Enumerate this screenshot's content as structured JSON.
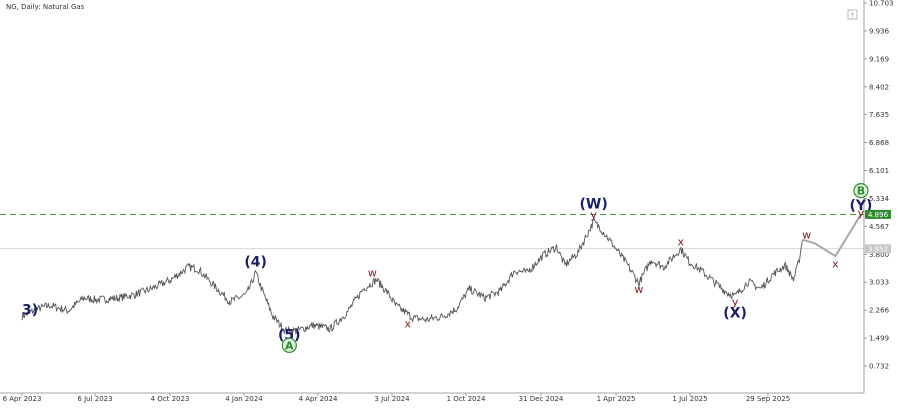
{
  "chart_data": {
    "type": "line",
    "symbol_label": "NG, Daily:  Natural Gas",
    "x_ticks": [
      "6 Apr 2023",
      "6 Jul 2023",
      "4 Oct 2023",
      "4 Jan 2024",
      "4 Apr 2024",
      "3 Jul 2024",
      "1 Oct 2024",
      "31 Dec 2024",
      "1 Apr 2025",
      "1 Jul 2025",
      "29 Sep 2025"
    ],
    "y_ticks": [
      "10.703",
      "9.936",
      "9.169",
      "8.402",
      "7.635",
      "6.868",
      "6.101",
      "5.334",
      "4.567",
      "3.800",
      "3.033",
      "2.266",
      "1.499",
      "0.732"
    ],
    "ylim": [
      0.4,
      10.703
    ],
    "price_path": [
      [
        "2023-04-06",
        2.1
      ],
      [
        "2023-04-25",
        2.3
      ],
      [
        "2023-05-10",
        2.4
      ],
      [
        "2023-06-01",
        2.25
      ],
      [
        "2023-06-20",
        2.6
      ],
      [
        "2023-07-06",
        2.55
      ],
      [
        "2023-08-01",
        2.6
      ],
      [
        "2023-08-22",
        2.7
      ],
      [
        "2023-09-10",
        2.85
      ],
      [
        "2023-10-04",
        3.1
      ],
      [
        "2023-10-25",
        3.45
      ],
      [
        "2023-11-06",
        3.4
      ],
      [
        "2023-11-25",
        2.95
      ],
      [
        "2023-12-15",
        2.5
      ],
      [
        "2024-01-04",
        2.7
      ],
      [
        "2024-01-10",
        3.0
      ],
      [
        "2024-01-15",
        3.3
      ],
      [
        "2024-01-25",
        2.7
      ],
      [
        "2024-02-05",
        2.1
      ],
      [
        "2024-02-20",
        1.7
      ],
      [
        "2024-03-05",
        1.7
      ],
      [
        "2024-03-25",
        1.85
      ],
      [
        "2024-04-15",
        1.75
      ],
      [
        "2024-05-05",
        2.2
      ],
      [
        "2024-05-25",
        2.85
      ],
      [
        "2024-06-10",
        3.1
      ],
      [
        "2024-06-25",
        2.7
      ],
      [
        "2024-07-03",
        2.4
      ],
      [
        "2024-07-25",
        2.05
      ],
      [
        "2024-08-10",
        2.0
      ],
      [
        "2024-08-30",
        2.1
      ],
      [
        "2024-09-15",
        2.3
      ],
      [
        "2024-10-01",
        2.85
      ],
      [
        "2024-10-20",
        2.6
      ],
      [
        "2024-11-08",
        2.8
      ],
      [
        "2024-11-25",
        3.35
      ],
      [
        "2024-12-10",
        3.3
      ],
      [
        "2024-12-31",
        3.8
      ],
      [
        "2025-01-15",
        4.0
      ],
      [
        "2025-01-25",
        3.5
      ],
      [
        "2025-02-10",
        3.85
      ],
      [
        "2025-03-01",
        4.7
      ],
      [
        "2025-03-10",
        4.5
      ],
      [
        "2025-03-25",
        4.05
      ],
      [
        "2025-04-10",
        3.55
      ],
      [
        "2025-04-25",
        3.0
      ],
      [
        "2025-05-10",
        3.65
      ],
      [
        "2025-05-25",
        3.45
      ],
      [
        "2025-06-15",
        3.95
      ],
      [
        "2025-06-25",
        3.6
      ],
      [
        "2025-07-10",
        3.35
      ],
      [
        "2025-07-25",
        3.05
      ],
      [
        "2025-08-10",
        2.75
      ],
      [
        "2025-08-20",
        2.65
      ],
      [
        "2025-09-05",
        3.05
      ],
      [
        "2025-09-20",
        2.85
      ],
      [
        "2025-10-05",
        3.25
      ],
      [
        "2025-10-20",
        3.5
      ],
      [
        "2025-10-30",
        3.1
      ],
      [
        "2025-11-05",
        3.55
      ],
      [
        "2025-11-10",
        4.2
      ]
    ],
    "projection": [
      [
        "2025-11-10",
        4.2
      ],
      [
        "2025-11-25",
        4.1
      ],
      [
        "2025-12-20",
        3.75
      ],
      [
        "2026-01-20",
        4.896
      ]
    ],
    "resistance_level": 4.896,
    "resistance_label": "4.896",
    "current_price": 3.952,
    "current_label": "3.952",
    "annotations": [
      {
        "text": "3)",
        "date": "2023-04-06",
        "price": 2.28,
        "color": "#1a1f6e",
        "style": "paren",
        "anchor": "start"
      },
      {
        "text": "(4)",
        "date": "2024-01-15",
        "price": 3.6,
        "color": "#1a1f6e",
        "style": "paren"
      },
      {
        "text": "(5)",
        "date": "2024-02-25",
        "price": 1.6,
        "color": "#1a1f6e",
        "style": "paren"
      },
      {
        "text": "A",
        "date": "2024-02-25",
        "price": 1.3,
        "color": "#2e8b2e",
        "style": "circle"
      },
      {
        "text": "w",
        "date": "2024-06-05",
        "price": 3.3,
        "color": "#8b1a1a",
        "style": "small"
      },
      {
        "text": "x",
        "date": "2024-07-18",
        "price": 1.9,
        "color": "#8b1a1a",
        "style": "small"
      },
      {
        "text": "(W)",
        "date": "2025-03-01",
        "price": 5.2,
        "color": "#1a1f6e",
        "style": "paren"
      },
      {
        "text": "y",
        "date": "2025-03-01",
        "price": 4.9,
        "color": "#8b1a1a",
        "style": "small"
      },
      {
        "text": "w",
        "date": "2025-04-25",
        "price": 2.85,
        "color": "#8b1a1a",
        "style": "small"
      },
      {
        "text": "x",
        "date": "2025-06-15",
        "price": 4.15,
        "color": "#8b1a1a",
        "style": "small"
      },
      {
        "text": "y",
        "date": "2025-08-20",
        "price": 2.5,
        "color": "#8b1a1a",
        "style": "small"
      },
      {
        "text": "(X)",
        "date": "2025-08-20",
        "price": 2.2,
        "color": "#1a1f6e",
        "style": "paren"
      },
      {
        "text": "w",
        "date": "2025-11-15",
        "price": 4.35,
        "color": "#8b1a1a",
        "style": "small"
      },
      {
        "text": "x",
        "date": "2025-12-20",
        "price": 3.55,
        "color": "#8b1a1a",
        "style": "small"
      },
      {
        "text": "(Y)",
        "date": "2026-01-20",
        "price": 5.15,
        "color": "#1a1f6e",
        "style": "paren"
      },
      {
        "text": "B",
        "date": "2026-01-20",
        "price": 5.55,
        "color": "#2e8b2e",
        "style": "circle"
      },
      {
        "text": "y",
        "date": "2026-01-20",
        "price": 4.95,
        "color": "#8b1a1a",
        "style": "small"
      }
    ],
    "colors": {
      "price": "#555555",
      "projection": "#a8a8a8",
      "resistance": "#2e8b2e",
      "current_line": "#c8c8c8",
      "current_tag": "#c8c8c8",
      "axis": "#888888",
      "label": "#333333"
    }
  }
}
